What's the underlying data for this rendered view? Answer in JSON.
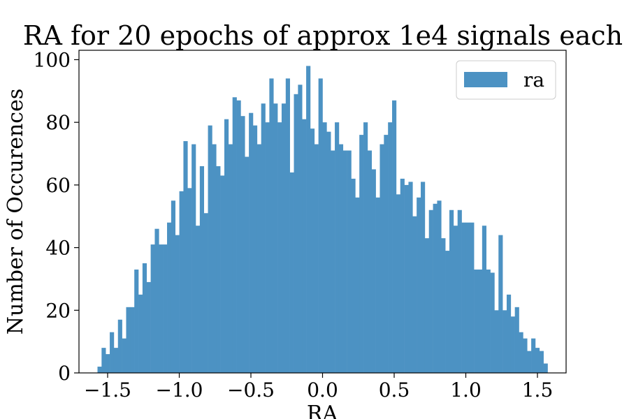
{
  "chart_data": {
    "type": "bar",
    "title": "RA for 20 epochs of approx 1e4 signals each",
    "xlabel": "RA",
    "ylabel": "Number of Occurences",
    "xlim": [
      -1.7,
      1.7
    ],
    "ylim": [
      0,
      103
    ],
    "xticks": [
      -1.5,
      -1.0,
      -0.5,
      0.0,
      0.5,
      1.0,
      1.5
    ],
    "xtick_labels": [
      "−1.5",
      "−1.0",
      "−0.5",
      "0.0",
      "0.5",
      "1.0",
      "1.5"
    ],
    "yticks": [
      0,
      20,
      40,
      60,
      80,
      100
    ],
    "ytick_labels": [
      "0",
      "20",
      "40",
      "60",
      "80",
      "100"
    ],
    "grid": false,
    "legend_position": "top-right",
    "series": [
      {
        "name": "ra",
        "color": "#4c92c3",
        "bin_start": -1.5708,
        "bin_end": 1.5708,
        "values": [
          2,
          8,
          6,
          13,
          8,
          17,
          11,
          21,
          21,
          33,
          25,
          35,
          29,
          41,
          46,
          41,
          41,
          48,
          55,
          44,
          58,
          74,
          59,
          73,
          47,
          66,
          51,
          79,
          73,
          66,
          63,
          81,
          73,
          88,
          87,
          82,
          69,
          83,
          79,
          73,
          86,
          80,
          94,
          86,
          80,
          86,
          94,
          64,
          89,
          92,
          81,
          98,
          78,
          73,
          94,
          80,
          77,
          71,
          80,
          73,
          71,
          71,
          62,
          56,
          76,
          80,
          71,
          65,
          56,
          73,
          76,
          80,
          87,
          57,
          62,
          60,
          61,
          50,
          56,
          61,
          43,
          52,
          54,
          55,
          43,
          39,
          52,
          47,
          52,
          48,
          48,
          48,
          33,
          33,
          47,
          33,
          32,
          20,
          44,
          20,
          25,
          18,
          21,
          13,
          11,
          7,
          11,
          8,
          7,
          3
        ]
      }
    ]
  }
}
